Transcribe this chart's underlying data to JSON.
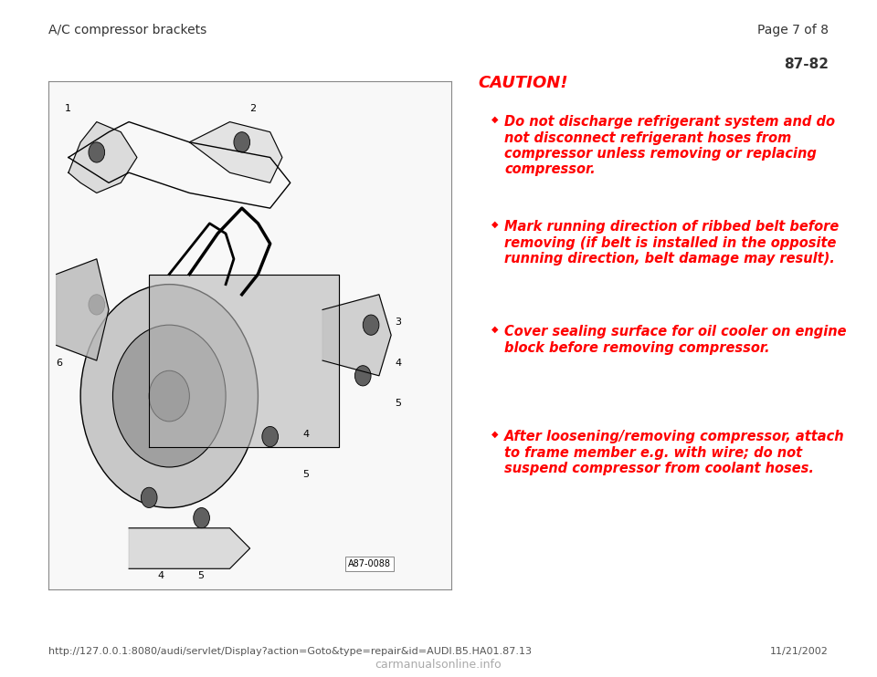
{
  "bg_color": "#ffffff",
  "header_left": "A/C compressor brackets",
  "header_right": "Page 7 of 8",
  "header_line_color": "#aaaaaa",
  "page_number_box": "87-82",
  "caution_title": "CAUTION!",
  "caution_color": "#ff0000",
  "bullets": [
    "Do not discharge refrigerant system and do\nnot disconnect refrigerant hoses from\ncompressor unless removing or replacing\ncompressor.",
    "Mark running direction of ribbed belt before\nremoving (if belt is installed in the opposite\nrunning direction, belt damage may result).",
    "Cover sealing surface for oil cooler on engine\nblock before removing compressor.",
    "After loosening/removing compressor, attach\nto frame member e.g. with wire; do not\nsuspend compressor from coolant hoses."
  ],
  "image_label": "A87-0088",
  "footer_url": "http://127.0.0.1:8080/audi/servlet/Display?action=Goto&type=repair&id=AUDI.B5.HA01.87.13",
  "footer_right": "11/21/2002",
  "footer_line_color": "#aaaaaa",
  "header_font_size": 10,
  "page_num_font_size": 11,
  "caution_title_font_size": 13,
  "bullet_font_size": 10.5,
  "footer_font_size": 8
}
